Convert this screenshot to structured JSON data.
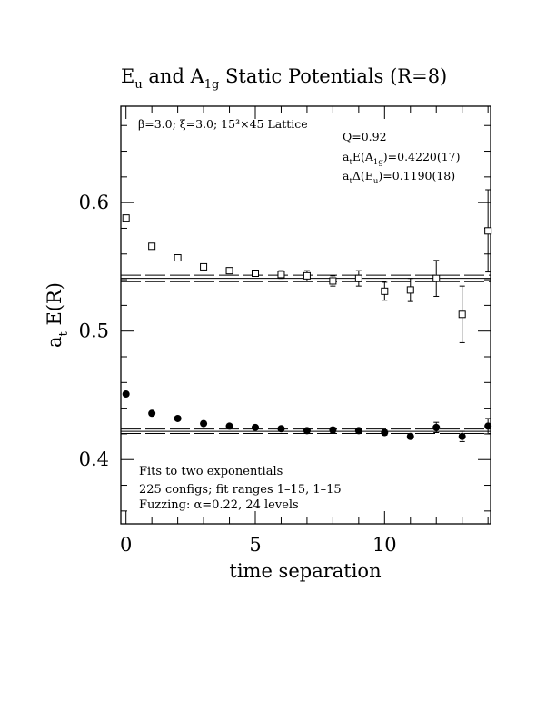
{
  "chart_data": {
    "type": "scatter",
    "title": {
      "E_main": "E",
      "E_sub": "u",
      "mid": " and ",
      "A_main": "A",
      "A_sub": "1g",
      "tail": " Static Potentials (R=8)"
    },
    "xlabel": "time separation",
    "ylabel": {
      "main": "a",
      "sub": "t",
      "tail": " E(R)"
    },
    "xlim": [
      -0.2,
      14.1
    ],
    "ylim": [
      0.35,
      0.675
    ],
    "x_ticks": [
      0,
      5,
      10
    ],
    "y_ticks": [
      0.4,
      0.5,
      0.6
    ],
    "x_tick_labels": [
      "0",
      "5",
      "10"
    ],
    "y_tick_labels": [
      "0.4",
      "0.5",
      "0.6"
    ],
    "annotations": {
      "lattice": "β=3.0; ξ=3.0; 15³×45 Lattice",
      "q": "Q=0.92",
      "energy": {
        "pre": "a",
        "pre_sub": "t",
        "mid": "E(A",
        "mid_sub": "1g",
        "tail": ")=0.4220(17)"
      },
      "gap": {
        "pre": "a",
        "pre_sub": "t",
        "mid": "Δ(E",
        "mid_sub": "u",
        "tail": ")=0.1190(18)"
      },
      "fits": "Fits to two exponentials",
      "configs": "225 configs; fit ranges 1–15, 1–15",
      "fuzzing": "Fuzzing: α=0.22, 24 levels"
    },
    "fit_bands": [
      {
        "series": "A1g",
        "center": 0.422,
        "err": 0.0017
      },
      {
        "series": "Eu",
        "center": 0.541,
        "err": 0.0025
      }
    ],
    "series": [
      {
        "marker": "filled-circle",
        "x": [
          0,
          1,
          2,
          3,
          4,
          5,
          6,
          7,
          8,
          9,
          10,
          11,
          12,
          13,
          14
        ],
        "y": [
          0.451,
          0.436,
          0.432,
          0.428,
          0.426,
          0.425,
          0.424,
          0.4225,
          0.423,
          0.4225,
          0.421,
          0.418,
          0.425,
          0.418,
          0.426
        ],
        "err": [
          0.0015,
          0.0015,
          0.0015,
          0.0015,
          0.0015,
          0.0015,
          0.0015,
          0.0015,
          0.002,
          0.002,
          0.002,
          0.002,
          0.004,
          0.004,
          0.006
        ]
      },
      {
        "marker": "open-square",
        "x": [
          0,
          1,
          2,
          3,
          4,
          5,
          6,
          7,
          8,
          9,
          10,
          11,
          12,
          13,
          14
        ],
        "y": [
          0.588,
          0.566,
          0.557,
          0.55,
          0.547,
          0.545,
          0.544,
          0.543,
          0.539,
          0.541,
          0.531,
          0.532,
          0.541,
          0.513,
          0.578
        ],
        "err": [
          0.002,
          0.002,
          0.002,
          0.002,
          0.002,
          0.002,
          0.003,
          0.004,
          0.004,
          0.006,
          0.007,
          0.009,
          0.014,
          0.022,
          0.032
        ]
      }
    ]
  }
}
